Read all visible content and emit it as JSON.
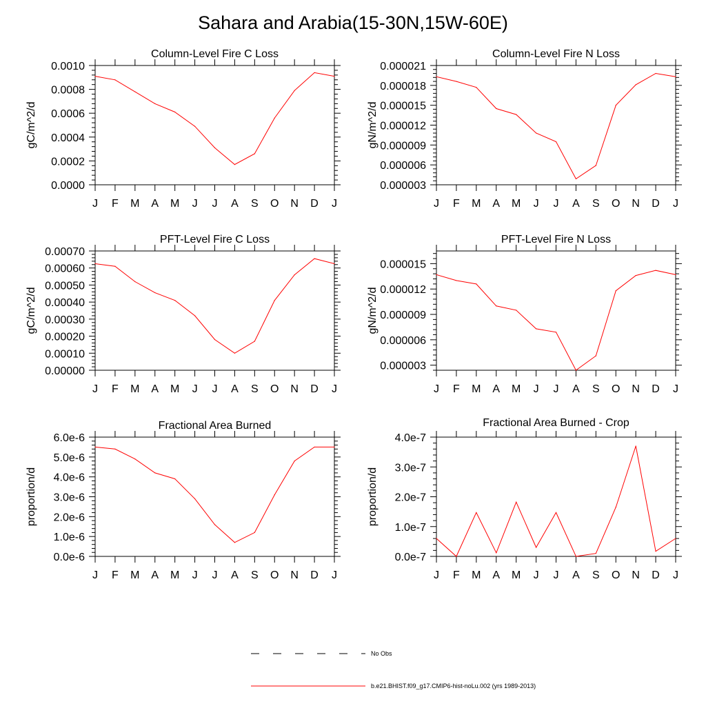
{
  "figure": {
    "title": "Sahara and Arabia(15-30N,15W-60E)",
    "line_color": "#ff0000",
    "obs_line_color": "#000000"
  },
  "chart_data": [
    {
      "type": "line",
      "title": "Column-Level Fire C Loss",
      "ylabel": "gC/m^2/d",
      "xlabel": "",
      "categories": [
        "J",
        "F",
        "M",
        "A",
        "M",
        "J",
        "J",
        "A",
        "S",
        "O",
        "N",
        "D",
        "J"
      ],
      "ylim": [
        0,
        0.001
      ],
      "yticks": [
        "0.0000",
        "0.0002",
        "0.0004",
        "0.0006",
        "0.0008",
        "0.0010"
      ],
      "ytick_values": [
        0,
        0.0002,
        0.0004,
        0.0006,
        0.0008,
        0.001
      ],
      "series": [
        {
          "values": [
            0.00091,
            0.00088,
            0.00078,
            0.00068,
            0.00061,
            0.00049,
            0.00031,
            0.00017,
            0.00026,
            0.00056,
            0.00079,
            0.00094,
            0.00091
          ]
        }
      ]
    },
    {
      "type": "line",
      "title": "Column-Level Fire N Loss",
      "ylabel": "gN/m^2/d",
      "xlabel": "",
      "categories": [
        "J",
        "F",
        "M",
        "A",
        "M",
        "J",
        "J",
        "A",
        "S",
        "O",
        "N",
        "D",
        "J"
      ],
      "ylim": [
        3e-06,
        2.1e-05
      ],
      "yticks": [
        "0.000003",
        "0.000006",
        "0.000009",
        "0.000012",
        "0.000015",
        "0.000018",
        "0.000021"
      ],
      "ytick_values": [
        3e-06,
        6e-06,
        9e-06,
        1.2e-05,
        1.5e-05,
        1.8e-05,
        2.1e-05
      ],
      "series": [
        {
          "values": [
            1.93e-05,
            1.86e-05,
            1.77e-05,
            1.45e-05,
            1.36e-05,
            1.08e-05,
            9.5e-06,
            3.9e-06,
            5.9e-06,
            1.5e-05,
            1.81e-05,
            1.98e-05,
            1.93e-05
          ]
        }
      ]
    },
    {
      "type": "line",
      "title": "PFT-Level Fire C Loss",
      "ylabel": "gC/m^2/d",
      "xlabel": "",
      "categories": [
        "J",
        "F",
        "M",
        "A",
        "M",
        "J",
        "J",
        "A",
        "S",
        "O",
        "N",
        "D",
        "J"
      ],
      "ylim": [
        0,
        0.0007
      ],
      "yticks": [
        "0.00000",
        "0.00010",
        "0.00020",
        "0.00030",
        "0.00040",
        "0.00050",
        "0.00060",
        "0.00070"
      ],
      "ytick_values": [
        0,
        0.0001,
        0.0002,
        0.0003,
        0.0004,
        0.0005,
        0.0006,
        0.0007
      ],
      "series": [
        {
          "values": [
            0.000625,
            0.00061,
            0.00052,
            0.000455,
            0.00041,
            0.00032,
            0.00018,
            0.0001,
            0.00017,
            0.00041,
            0.00056,
            0.000655,
            0.000625
          ]
        }
      ]
    },
    {
      "type": "line",
      "title": "PFT-Level Fire N Loss",
      "ylabel": "gN/m^2/d",
      "xlabel": "",
      "categories": [
        "J",
        "F",
        "M",
        "A",
        "M",
        "J",
        "J",
        "A",
        "S",
        "O",
        "N",
        "D",
        "J"
      ],
      "ylim": [
        2.4e-06,
        1.65e-05
      ],
      "yticks": [
        "0.000003",
        "0.000006",
        "0.000009",
        "0.000012",
        "0.000015"
      ],
      "ytick_values": [
        3e-06,
        6e-06,
        9e-06,
        1.2e-05,
        1.5e-05
      ],
      "series": [
        {
          "values": [
            1.37e-05,
            1.3e-05,
            1.26e-05,
            1e-05,
            9.5e-06,
            7.3e-06,
            6.9e-06,
            2.4e-06,
            4.1e-06,
            1.18e-05,
            1.36e-05,
            1.42e-05,
            1.37e-05
          ]
        }
      ]
    },
    {
      "type": "line",
      "title": "Fractional Area Burned",
      "ylabel": "proportion/d",
      "xlabel": "",
      "categories": [
        "J",
        "F",
        "M",
        "A",
        "M",
        "J",
        "J",
        "A",
        "S",
        "O",
        "N",
        "D",
        "J"
      ],
      "ylim": [
        0,
        6e-06
      ],
      "yticks": [
        "0.0e-6",
        "1.0e-6",
        "2.0e-6",
        "3.0e-6",
        "4.0e-6",
        "5.0e-6",
        "6.0e-6"
      ],
      "ytick_values": [
        0,
        1e-06,
        2e-06,
        3e-06,
        4e-06,
        5e-06,
        6e-06
      ],
      "series": [
        {
          "values": [
            5.5e-06,
            5.4e-06,
            4.9e-06,
            4.2e-06,
            3.9e-06,
            2.9e-06,
            1.6e-06,
            7e-07,
            1.2e-06,
            3.1e-06,
            4.8e-06,
            5.5e-06,
            5.5e-06
          ]
        }
      ]
    },
    {
      "type": "line",
      "title": "Fractional Area Burned - Crop",
      "ylabel": "proportion/d",
      "xlabel": "",
      "categories": [
        "J",
        "F",
        "M",
        "A",
        "M",
        "J",
        "J",
        "A",
        "S",
        "O",
        "N",
        "D",
        "J"
      ],
      "ylim": [
        0,
        4e-07
      ],
      "yticks": [
        "0.0e-7",
        "1.0e-7",
        "2.0e-7",
        "3.0e-7",
        "4.0e-7"
      ],
      "ytick_values": [
        0,
        1e-07,
        2e-07,
        3e-07,
        4e-07
      ],
      "series": [
        {
          "values": [
            6e-08,
            0.0,
            1.47e-07,
            1.2e-08,
            1.82e-07,
            3e-08,
            1.47e-07,
            0.0,
            1e-08,
            1.65e-07,
            3.7e-07,
            1.7e-08,
            6e-08
          ]
        }
      ]
    }
  ],
  "legend": {
    "items": [
      {
        "label": "No Obs",
        "style": "dashed"
      },
      {
        "label": "b.e21.BHIST.f09_g17.CMIP6-hist-noLu.002 (yrs 1989-2013)",
        "style": "solid"
      }
    ]
  }
}
